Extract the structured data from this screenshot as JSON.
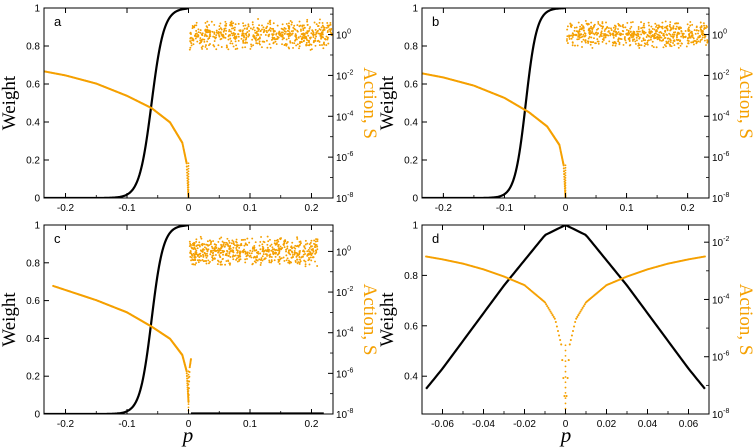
{
  "colors": {
    "weight": "#000000",
    "action": "#f5a000"
  },
  "chart_data": [
    {
      "type": "line",
      "panel_label": "a",
      "ylabel": "Weight",
      "y2label": "Action, S",
      "xlim": [
        -0.235,
        0.235
      ],
      "ylim": [
        0,
        1
      ],
      "y2lim_log10": [
        -8,
        1.3
      ],
      "xticks": [
        "-0.2",
        "-0.1",
        "0",
        "0.1",
        "0.2"
      ],
      "yticks": [
        "0",
        "0.2",
        "0.4",
        "0.6",
        "0.8",
        "1"
      ],
      "y2ticks": [
        "10",
        "10",
        "10",
        "10",
        "10",
        "10"
      ],
      "y2tick_exponents": [
        "-8",
        "-6",
        "-4",
        "-2",
        "0",
        ""
      ],
      "series": [
        {
          "type": "line",
          "color": "weight",
          "form": "step",
          "center": -0.06,
          "scale": 0.02,
          "x_end": -0.003
        },
        {
          "type": "scatter",
          "color": "action",
          "form": "action_left",
          "x": [
            -0.235,
            -0.2,
            -0.15,
            -0.1,
            -0.06,
            -0.03,
            -0.01,
            -0.003,
            0
          ],
          "log10_y": [
            -1.8,
            -2.0,
            -2.4,
            -3.0,
            -3.6,
            -4.3,
            -5.3,
            -6.3,
            -8.0
          ]
        },
        {
          "type": "scatter",
          "color": "action",
          "form": "noise_band",
          "x_range": [
            0.002,
            0.233
          ],
          "log10_y_range": [
            -0.8,
            0.8
          ]
        }
      ]
    },
    {
      "type": "line",
      "panel_label": "b",
      "ylabel": "Weight",
      "y2label": "Action, S",
      "xlim": [
        -0.235,
        0.235
      ],
      "ylim": [
        0,
        1
      ],
      "y2lim_log10": [
        -8,
        1.3
      ],
      "xticks": [
        "-0.2",
        "-0.1",
        "0",
        "0.1",
        "0.2"
      ],
      "yticks": [
        "0",
        "0.2",
        "0.4",
        "0.6",
        "0.8",
        "1"
      ],
      "y2ticks": [
        "10",
        "10",
        "10",
        "10",
        "10",
        "10"
      ],
      "y2tick_exponents": [
        "-8",
        "-6",
        "-4",
        "-2",
        "0",
        ""
      ],
      "series": [
        {
          "type": "line",
          "color": "weight",
          "form": "step",
          "center": -0.065,
          "scale": 0.018,
          "x_end": -0.003
        },
        {
          "type": "scatter",
          "color": "action",
          "form": "action_left",
          "x": [
            -0.235,
            -0.2,
            -0.15,
            -0.1,
            -0.06,
            -0.03,
            -0.01,
            -0.003,
            0
          ],
          "log10_y": [
            -1.9,
            -2.1,
            -2.5,
            -3.1,
            -3.8,
            -4.5,
            -5.4,
            -6.4,
            -8.0
          ]
        },
        {
          "type": "scatter",
          "color": "action",
          "form": "noise_band",
          "x_range": [
            0.002,
            0.233
          ],
          "log10_y_range": [
            -0.7,
            0.7
          ]
        }
      ]
    },
    {
      "type": "line",
      "panel_label": "c",
      "ylabel": "Weight",
      "y2label": "Action, S",
      "xlim": [
        -0.235,
        0.235
      ],
      "ylim": [
        0,
        1
      ],
      "y2lim_log10": [
        -8,
        1.3
      ],
      "xticks": [
        "-0.2",
        "-0.1",
        "0",
        "0.1",
        "0.2"
      ],
      "yticks": [
        "0",
        "0.2",
        "0.4",
        "0.6",
        "0.8",
        "1"
      ],
      "y2ticks": [
        "10",
        "10",
        "10",
        "10",
        "10",
        "10"
      ],
      "y2tick_exponents": [
        "-8",
        "-6",
        "-4",
        "-2",
        "0",
        ""
      ],
      "series": [
        {
          "type": "line",
          "color": "weight",
          "form": "step",
          "center": -0.06,
          "scale": 0.019,
          "x_end": -0.003,
          "tail_x": [
            0.004,
            0.22
          ],
          "tail_y": 0.003
        },
        {
          "type": "scatter",
          "color": "action",
          "form": "action_left",
          "x": [
            -0.22,
            -0.2,
            -0.15,
            -0.1,
            -0.06,
            -0.03,
            -0.01,
            -0.003,
            0
          ],
          "log10_y": [
            -1.7,
            -1.9,
            -2.4,
            -3.0,
            -3.7,
            -4.3,
            -5.1,
            -5.9,
            -7.4
          ]
        },
        {
          "type": "scatter",
          "color": "action",
          "form": "action_right",
          "x": [
            0,
            0.001,
            0.002,
            0.004
          ],
          "log10_y": [
            -7.4,
            -6.4,
            -5.7,
            -5.3
          ]
        },
        {
          "type": "scatter",
          "color": "action",
          "form": "noise_band",
          "x_range": [
            0.002,
            0.21
          ],
          "log10_y_range": [
            -0.8,
            0.8
          ]
        }
      ]
    },
    {
      "type": "line",
      "panel_label": "d",
      "ylabel": "Weight",
      "y2label": "Action, S",
      "xlim": [
        -0.07,
        0.07
      ],
      "ylim": [
        0.25,
        1
      ],
      "y2lim_log10": [
        -8,
        -1.4
      ],
      "xticks": [
        "-0.06",
        "-0.04",
        "-0.02",
        "0",
        "0.02",
        "0.04",
        "0.06"
      ],
      "yticks": [
        "0.4",
        "0.6",
        "0.8",
        "1"
      ],
      "y2ticks": [
        "10",
        "10",
        "10",
        "10"
      ],
      "y2tick_exponents": [
        "-8",
        "-6",
        "-4",
        "-2"
      ],
      "series": [
        {
          "type": "line",
          "color": "weight",
          "form": "bell",
          "x": [
            -0.068,
            -0.06,
            -0.05,
            -0.04,
            -0.03,
            -0.02,
            -0.01,
            0,
            0.01,
            0.02,
            0.03,
            0.04,
            0.05,
            0.06,
            0.068
          ],
          "y": [
            0.35,
            0.43,
            0.54,
            0.65,
            0.76,
            0.86,
            0.96,
            1.0,
            0.96,
            0.86,
            0.76,
            0.65,
            0.54,
            0.43,
            0.35
          ]
        },
        {
          "type": "scatter",
          "color": "action",
          "form": "symmetric_cusp",
          "x": [
            -0.068,
            -0.06,
            -0.05,
            -0.04,
            -0.03,
            -0.02,
            -0.01,
            -0.005,
            -0.002,
            0,
            0.002,
            0.005,
            0.01,
            0.02,
            0.03,
            0.04,
            0.05,
            0.06,
            0.068
          ],
          "log10_y": [
            -2.5,
            -2.6,
            -2.75,
            -2.95,
            -3.2,
            -3.5,
            -4.1,
            -4.7,
            -5.6,
            -8.0,
            -5.6,
            -4.7,
            -4.1,
            -3.5,
            -3.2,
            -2.95,
            -2.75,
            -2.6,
            -2.5
          ]
        }
      ]
    }
  ],
  "xlabel": "p"
}
